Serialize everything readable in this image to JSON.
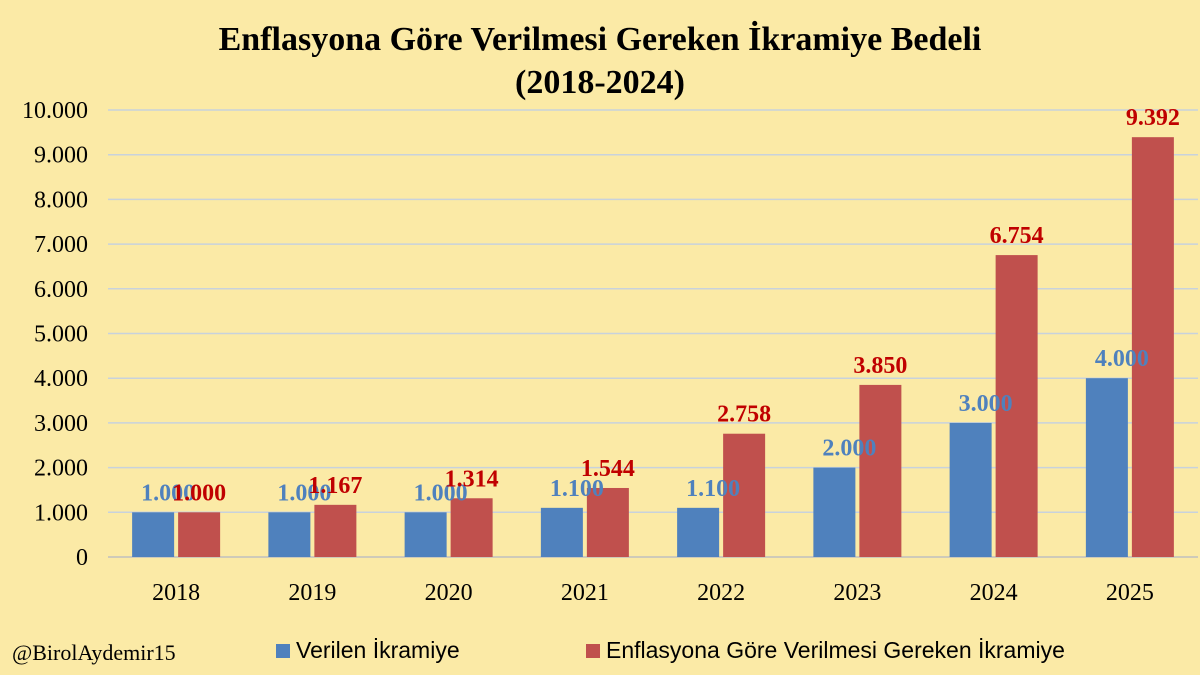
{
  "chart_data": {
    "type": "bar",
    "title": "Enflasyona Göre Verilmesi Gereken İkramiye Bedeli",
    "subtitle": "(2018-2024)",
    "categories": [
      "2018",
      "2019",
      "2020",
      "2021",
      "2022",
      "2023",
      "2024",
      "2025"
    ],
    "series": [
      {
        "name": "Verilen İkramiye",
        "values": [
          1000,
          1000,
          1000,
          1100,
          1100,
          2000,
          3000,
          4000
        ],
        "labels": [
          "1.000",
          "1.000",
          "1.000",
          "1.100",
          "1.100",
          "2.000",
          "3.000",
          "4.000"
        ],
        "color": "#4f81bd",
        "label_color": "#4f81bd"
      },
      {
        "name": "Enflasyona Göre Verilmesi Gereken İkramiye",
        "values": [
          1000,
          1167,
          1314,
          1544,
          2758,
          3850,
          6754,
          9392
        ],
        "labels": [
          "1.000",
          "1.167",
          "1.314",
          "1.544",
          "2.758",
          "3.850",
          "6.754",
          "9.392"
        ],
        "color": "#c0504d",
        "label_color": "#c00000"
      }
    ],
    "ylim": [
      0,
      10000
    ],
    "yticks": [
      0,
      1000,
      2000,
      3000,
      4000,
      5000,
      6000,
      7000,
      8000,
      9000,
      10000
    ],
    "ytick_labels": [
      "0",
      "1.000",
      "2.000",
      "3.000",
      "4.000",
      "5.000",
      "6.000",
      "7.000",
      "8.000",
      "9.000",
      "10.000"
    ],
    "grid": true,
    "legend_position": "bottom",
    "xlabel": "",
    "ylabel": ""
  },
  "credit": "@BirolAydemir15",
  "colors": {
    "background": "#fbeaa6",
    "grid": "#c8d2dc",
    "axis": "#bfbfbf"
  }
}
